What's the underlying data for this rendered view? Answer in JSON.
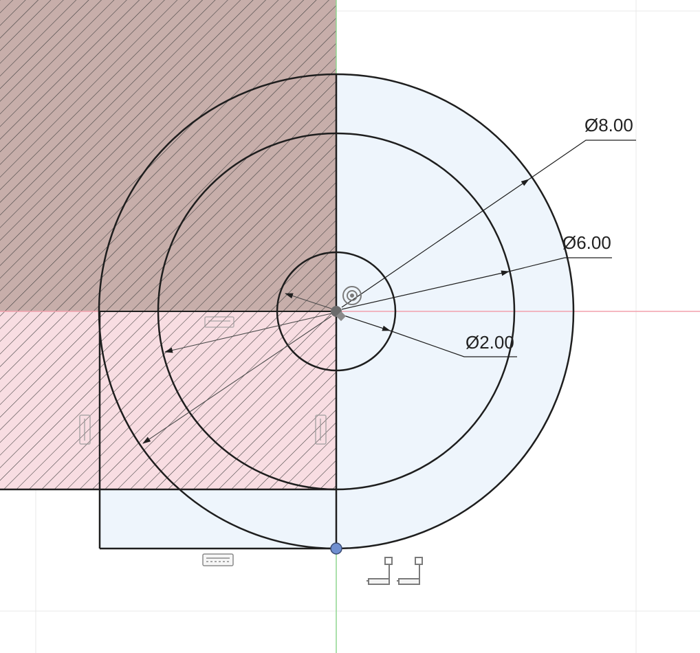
{
  "sketch": {
    "dimensions": [
      {
        "id": "dia-8",
        "label": "Ø8.00",
        "value": 8.0
      },
      {
        "id": "dia-6",
        "label": "Ø6.00",
        "value": 6.0
      },
      {
        "id": "dia-2",
        "label": "Ø2.00",
        "value": 2.0
      }
    ],
    "colors": {
      "profile_fill": "#eef5fc",
      "section_upper": "#c7aeaa",
      "section_lower": "#f8dde2",
      "hatch": "#3a3a3a",
      "outline": "#1e1e1e",
      "x_axis": "#f2a0ac",
      "y_axis": "#8fd68f",
      "point": "#6f8fd0",
      "grid": "#e8e8e8"
    },
    "icons": [
      "horizontal-constraint-icon",
      "vertical-constraint-icon",
      "coincident-constraint-icon",
      "concentric-constraint-icon",
      "fix-constraint-icon"
    ]
  }
}
